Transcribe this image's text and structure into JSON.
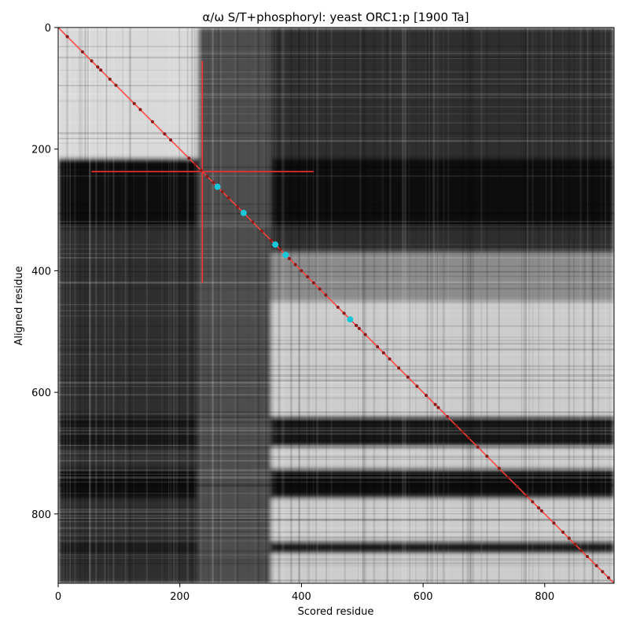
{
  "chart_data": {
    "type": "heatmap",
    "title": "α/ω S/T+phosphoryl: yeast ORC1:p [1900 Ta]",
    "xlabel": "Scored residue",
    "ylabel": "Aligned residue",
    "xlim": [
      0,
      914
    ],
    "ylim": [
      914,
      0
    ],
    "xticks": [
      {
        "value": 0,
        "label": "0"
      },
      {
        "value": 200,
        "label": "200"
      },
      {
        "value": 400,
        "label": "400"
      },
      {
        "value": 600,
        "label": "600"
      },
      {
        "value": 800,
        "label": "800"
      }
    ],
    "yticks": [
      {
        "value": 0,
        "label": "0"
      },
      {
        "value": 200,
        "label": "200"
      },
      {
        "value": 400,
        "label": "400"
      },
      {
        "value": 600,
        "label": "600"
      },
      {
        "value": 800,
        "label": "800"
      }
    ],
    "colormap": "grayscale",
    "background_regions": [
      {
        "x": [
          0,
          914
        ],
        "y": [
          0,
          914
        ],
        "level": 0.18
      },
      {
        "x": [
          0,
          230
        ],
        "y": [
          0,
          215
        ],
        "level": 0.85
      },
      {
        "x": [
          350,
          914
        ],
        "y": [
          450,
          914
        ],
        "level": 0.8
      },
      {
        "x": [
          350,
          914
        ],
        "y": [
          370,
          450
        ],
        "level": 0.55
      },
      {
        "x": [
          0,
          914
        ],
        "y": [
          215,
          330
        ],
        "level": 0.05
      },
      {
        "x": [
          0,
          914
        ],
        "y": [
          640,
          690
        ],
        "level": 0.08
      },
      {
        "x": [
          0,
          914
        ],
        "y": [
          725,
          775
        ],
        "level": 0.05
      },
      {
        "x": [
          0,
          914
        ],
        "y": [
          845,
          865
        ],
        "level": 0.1
      },
      {
        "x": [
          230,
          350
        ],
        "y": [
          0,
          914
        ],
        "level": 0.3
      }
    ],
    "diagonal": {
      "from": [
        0,
        0
      ],
      "to": [
        914,
        914
      ],
      "color": "#ff4040"
    },
    "crosshair": {
      "x": 237,
      "y": 237,
      "x_range": [
        55,
        420
      ],
      "y_range": [
        55,
        420
      ],
      "color": "#ff3030"
    },
    "diagonal_points": [
      15,
      40,
      55,
      65,
      70,
      85,
      95,
      125,
      135,
      155,
      175,
      185,
      215,
      225,
      235,
      245,
      255,
      270,
      280,
      295,
      320,
      335,
      350,
      365,
      380,
      390,
      400,
      410,
      420,
      430,
      440,
      460,
      470,
      490,
      495,
      505,
      525,
      535,
      545,
      560,
      575,
      590,
      605,
      620,
      625,
      640,
      655,
      665,
      675,
      690,
      705,
      725,
      740,
      755,
      770,
      780,
      790,
      795,
      815,
      830,
      840,
      850,
      860,
      870,
      885,
      895,
      905
    ],
    "highlight_points": [
      {
        "x": 262,
        "y": 262
      },
      {
        "x": 305,
        "y": 305
      },
      {
        "x": 357,
        "y": 357
      },
      {
        "x": 374,
        "y": 374
      },
      {
        "x": 480,
        "y": 480
      }
    ],
    "point_color": "#8b1a1a",
    "highlight_color": "#19c8d8"
  }
}
